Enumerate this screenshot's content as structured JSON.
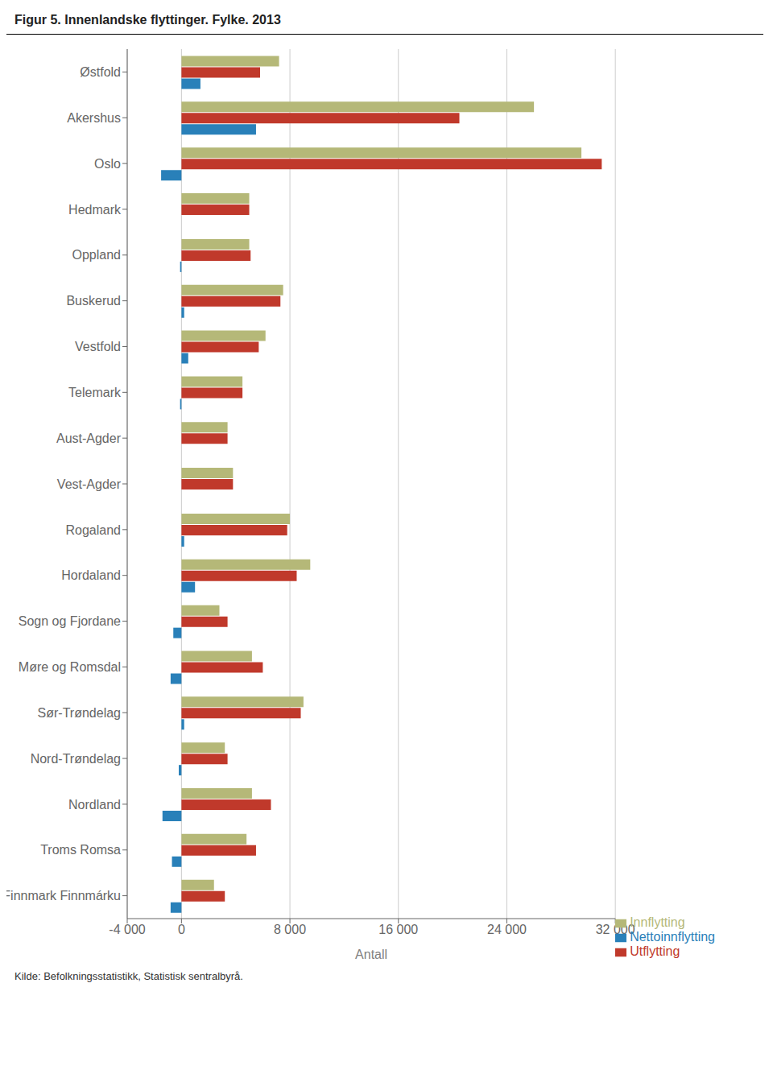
{
  "chart_data": {
    "type": "bar",
    "orientation": "horizontal",
    "title": "Figur 5. Innenlandske flyttinger. Fylke. 2013",
    "xlabel": "Antall",
    "annotations": [
      "Kilde: Befolkningsstatistikk, Statistisk sentralbyrå."
    ],
    "categories": [
      "Østfold",
      "Akershus",
      "Oslo",
      "Hedmark",
      "Oppland",
      "Buskerud",
      "Vestfold",
      "Telemark",
      "Aust-Agder",
      "Vest-Agder",
      "Rogaland",
      "Hordaland",
      "Sogn og Fjordane",
      "Møre og Romsdal",
      "Sør-Trøndelag",
      "Nord-Trøndelag",
      "Nordland",
      "Troms Romsa",
      "Finnmark Finnmárku"
    ],
    "series": [
      {
        "name": "Innflytting",
        "color": "#b5b878",
        "values": [
          7200,
          26000,
          29500,
          5000,
          5000,
          7500,
          6200,
          4500,
          3400,
          3800,
          8000,
          9500,
          2800,
          5200,
          9000,
          3200,
          5200,
          4800,
          2400
        ]
      },
      {
        "name": "Utflytting",
        "color": "#c0392b",
        "values": [
          5800,
          20500,
          31000,
          5000,
          5100,
          7300,
          5700,
          4500,
          3400,
          3800,
          7800,
          8500,
          3400,
          6000,
          8800,
          3400,
          6600,
          5500,
          3200
        ]
      },
      {
        "name": "Nettoinnflytting",
        "color": "#2980b9",
        "values": [
          1400,
          5500,
          -1500,
          0,
          -100,
          200,
          500,
          -100,
          0,
          0,
          200,
          1000,
          -600,
          -800,
          200,
          -200,
          -1400,
          -700,
          -800
        ]
      }
    ],
    "xlim": [
      -4000,
      32000
    ],
    "xticks": [
      {
        "value": -4000,
        "label": "-4 000"
      },
      0,
      {
        "value": 8000,
        "label": "8 000"
      },
      {
        "value": 16000,
        "label": "16 000"
      },
      {
        "value": 24000,
        "label": "24 000"
      },
      {
        "value": 32000,
        "label": "32 000"
      }
    ],
    "grid": true,
    "legend": "lower right"
  }
}
